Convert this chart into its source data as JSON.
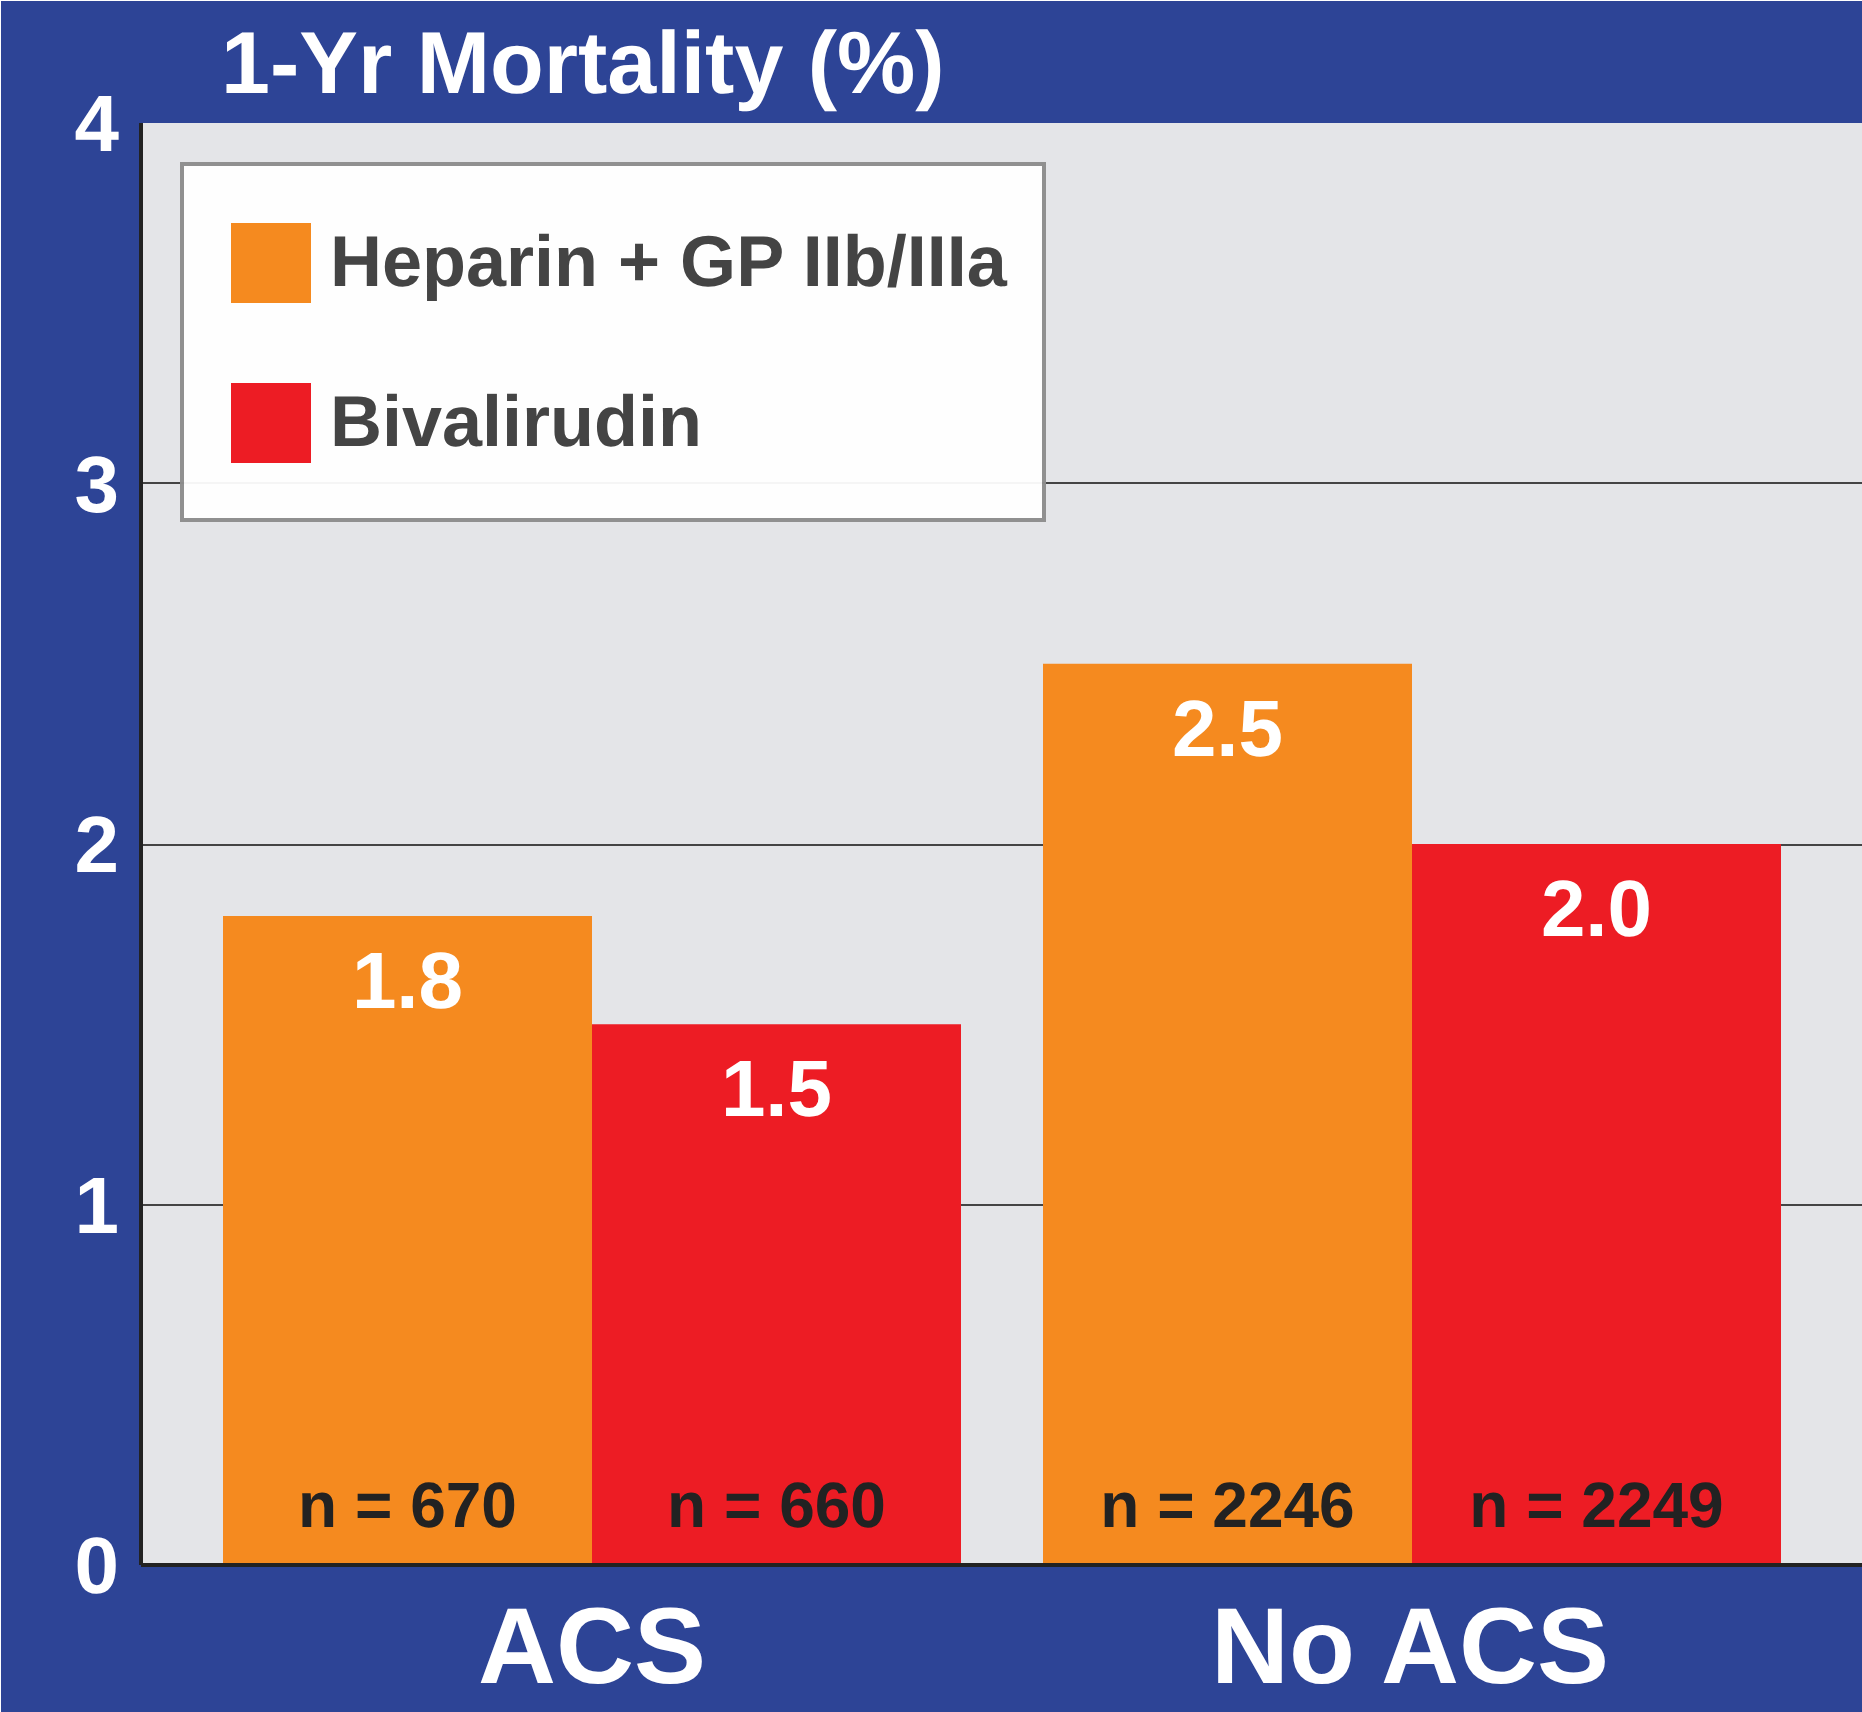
{
  "chart_data": {
    "type": "bar",
    "title": "1-Yr Mortality (%)",
    "categories": [
      "ACS",
      "No ACS"
    ],
    "series": [
      {
        "name": "Heparin + GP IIb/IIIa",
        "color": "#f58a1f",
        "values": [
          1.8,
          2.5
        ],
        "value_labels": [
          "1.8",
          "2.5"
        ]
      },
      {
        "name": "Bivalirudin",
        "color": "#ed1c24",
        "values": [
          1.5,
          2.0
        ],
        "value_labels": [
          "1.5",
          "2.0"
        ]
      }
    ],
    "ylim": [
      0,
      4
    ],
    "yticks": [
      0,
      1,
      2,
      3,
      4
    ],
    "grid": "y",
    "legend": "top left",
    "annotations": [
      "n = 670",
      "n = 660",
      "n = 2246",
      "n = 2249"
    ]
  }
}
